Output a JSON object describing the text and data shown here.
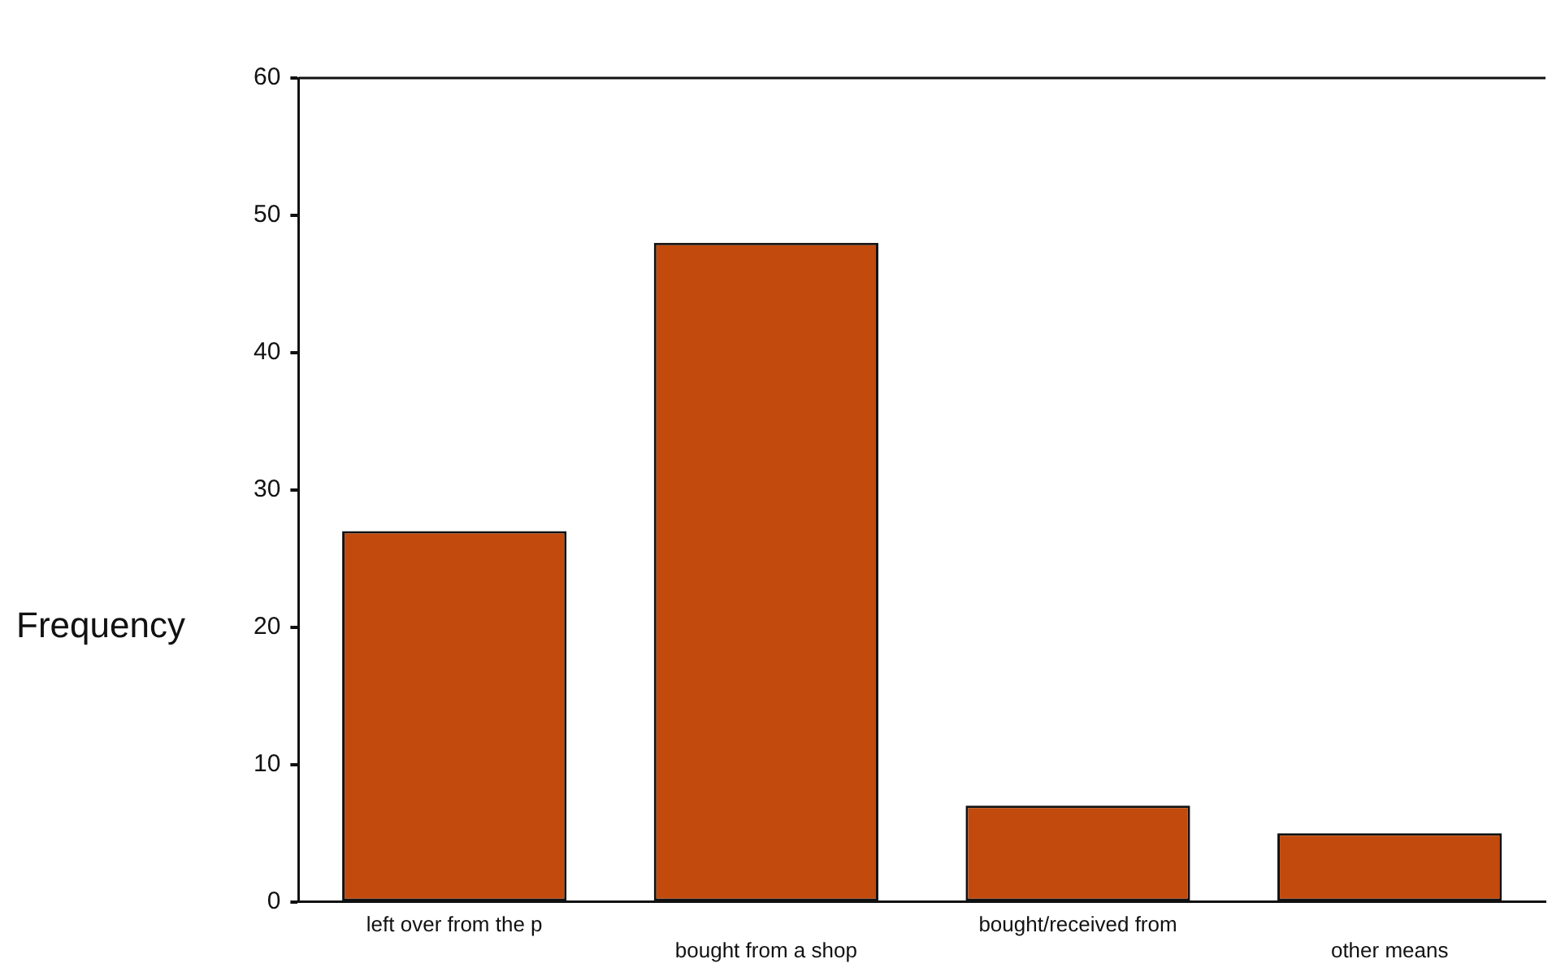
{
  "chart_data": {
    "type": "bar",
    "ylabel": "Frequency",
    "categories": [
      "left over from the p",
      "bought from a shop",
      "bought/received from",
      "other means"
    ],
    "values": [
      27,
      48,
      7,
      5
    ],
    "color": "#c24a0c",
    "ylim": [
      0,
      60
    ],
    "yticks": [
      0,
      10,
      20,
      30,
      40,
      50,
      60
    ],
    "grid": false,
    "legend": false
  }
}
